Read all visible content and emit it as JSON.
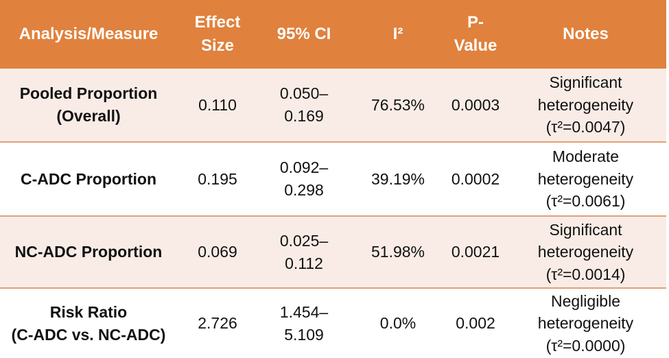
{
  "chart_data": {
    "type": "table",
    "columns": [
      {
        "label": "Analysis/Measure"
      },
      {
        "label": "Effect\nSize"
      },
      {
        "label": "95% CI"
      },
      {
        "label": "I²"
      },
      {
        "label": "P-\nValue"
      },
      {
        "label": "Notes"
      }
    ],
    "rows": [
      {
        "measure": "Pooled Proportion\n(Overall)",
        "effect_size": "0.110",
        "ci_95": "0.050–0.169",
        "i2": "76.53%",
        "p_value": "0.0003",
        "notes": "Significant heterogeneity (τ²=0.0047)"
      },
      {
        "measure": "C-ADC Proportion",
        "effect_size": "0.195",
        "ci_95": "0.092–0.298",
        "i2": "39.19%",
        "p_value": "0.0002",
        "notes": "Moderate heterogeneity (τ²=0.0061)"
      },
      {
        "measure": "NC-ADC Proportion",
        "effect_size": "0.069",
        "ci_95": "0.025–0.112",
        "i2": "51.98%",
        "p_value": "0.0021",
        "notes": "Significant heterogeneity (τ²=0.0014)"
      },
      {
        "measure": "Risk Ratio\n(C-ADC vs. NC-ADC)",
        "effect_size": "2.726",
        "ci_95": "1.454–5.109",
        "i2": "0.0%",
        "p_value": "0.002",
        "notes": "Negligible heterogeneity (τ²=0.0000)"
      }
    ],
    "layout": {
      "header_position": "top",
      "banded_rows": true
    }
  },
  "colors": {
    "header_bg": "#E0813D",
    "header_text": "#FFFFFF",
    "banded_row_bg": "#F9ECE6",
    "plain_row_bg": "#FFFFFF",
    "row_divider": "#DFA273",
    "body_text": "#111111"
  }
}
